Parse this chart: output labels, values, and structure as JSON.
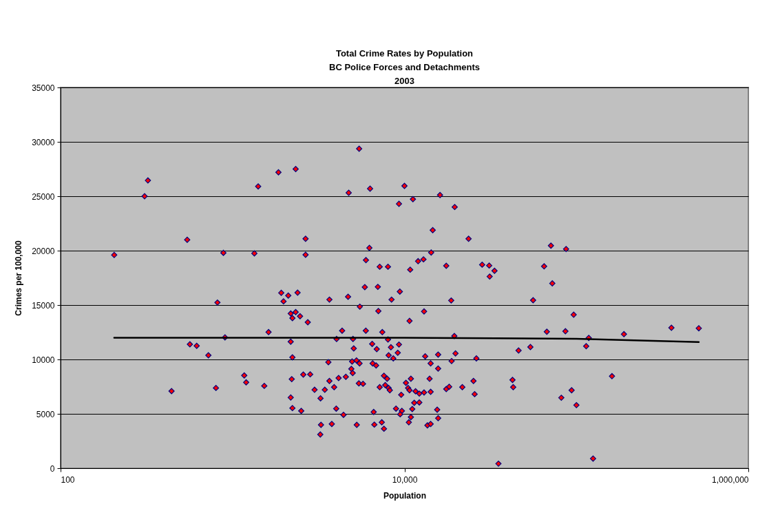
{
  "chart_data": {
    "type": "scatter",
    "title": "Total Crime Rates by Population\nBC Police Forces and Detachments\n2003",
    "xlabel": "Population",
    "ylabel": "Crimes per 100,000",
    "log": "x",
    "xlim": [
      100,
      1000000
    ],
    "xticks": [
      100,
      {
        "value": 10000,
        "label": "10,000"
      },
      {
        "value": 1000000,
        "label": "1,000,000"
      }
    ],
    "ylim": [
      0,
      35000
    ],
    "yticks": [
      0,
      5000,
      10000,
      15000,
      20000,
      25000,
      30000,
      35000
    ],
    "grid": "y",
    "series": [
      {
        "color": "#ff0000",
        "marker": "diamond",
        "x": [
          205,
          308,
          322,
          545,
          885,
          1340,
          1410,
          1850,
          2330,
          817,
          1920,
          2110,
          1980,
          2180,
          2230,
          1620,
          904,
          565,
          619,
          724,
          2180,
          2230,
          1170,
          1200,
          1530,
          442,
          801,
          2210,
          2180,
          2230,
          5450,
          4740,
          6310,
          10000,
          9290,
          11200,
          16100,
          19600,
          14600,
          23600,
          2660,
          2660,
          6250,
          14300,
          5970,
          7180,
          8020,
          10800,
          12000,
          12900,
          17500,
          28300,
          31100,
          33400,
          31300,
          71100,
          87100,
          64900,
          72400,
          56000,
          96400,
          67300,
          86300,
          118000,
          114000,
          189000,
          357000,
          515000,
          54000,
          46100,
          161000,
          93800,
          81700,
          100000,
          125000,
          2390,
          3660,
          4700,
          5880,
          7000,
          9400,
          8410,
          18700,
          5500,
          7050,
          13000,
          10700,
          2330,
          2470,
          2740,
          4340,
          5960,
          7430,
          4030,
          5020,
          8020,
          5070,
          6490,
          6900,
          8340,
          9290,
          9140,
          8090,
          8610,
          19500,
          19800,
          18800,
          26200,
          13200,
          15700,
          14200,
          15700,
          3610,
          4960,
          5260,
          5480,
          6530,
          6840,
          4910,
          5000,
          2580,
          2830,
          3660,
          4140,
          4560,
          3900,
          3000,
          3440,
          3250,
          5430,
          5740,
          7600,
          7930,
          7180,
          7730,
          8090,
          8220,
          10200,
          10900,
          10500,
          10700,
          11600,
          12200,
          13000,
          14200,
          14000,
          9570,
          17500,
          18200,
          21700,
          25200,
          25600,
          42500,
          42900,
          2510,
          4010,
          4420,
          6620,
          8930,
          9660,
          9440,
          11100,
          11400,
          12200,
          10900,
          10600,
          15500,
          15700,
          13600,
          14200,
          3270,
          3780,
          3240,
          5280,
          6680,
          7380,
          7600,
          35200
        ],
        "values": [
          19600,
          25000,
          26450,
          21000,
          19800,
          19750,
          25900,
          27200,
          27500,
          15230,
          16120,
          15870,
          15340,
          14220,
          13800,
          12510,
          12030,
          11390,
          11250,
          10380,
          11630,
          10190,
          8530,
          7890,
          7570,
          7090,
          7380,
          8190,
          6500,
          5530,
          29370,
          25320,
          25700,
          25950,
          24300,
          24730,
          25110,
          24010,
          21880,
          21090,
          21090,
          19620,
          20250,
          19830,
          19130,
          18520,
          18520,
          18250,
          19030,
          19200,
          18610,
          18710,
          18630,
          18150,
          17620,
          20460,
          20150,
          18560,
          16990,
          15440,
          14110,
          12550,
          12590,
          11980,
          11220,
          12320,
          12910,
          12870,
          11140,
          10820,
          8460,
          7170,
          6480,
          5800,
          890,
          16140,
          15500,
          15760,
          16650,
          16670,
          16240,
          15500,
          15420,
          14850,
          14450,
          14410,
          13540,
          14350,
          13970,
          13420,
          12640,
          12640,
          12510,
          11880,
          11880,
          11830,
          11010,
          11430,
          10950,
          11120,
          11370,
          10610,
          10380,
          10100,
          12150,
          10550,
          9850,
          10100,
          10290,
          10440,
          9640,
          9160,
          9750,
          9810,
          9910,
          9640,
          9640,
          9450,
          9130,
          8750,
          8610,
          8630,
          8020,
          8290,
          8400,
          7450,
          7210,
          7210,
          6430,
          7800,
          7760,
          8500,
          8230,
          7450,
          7640,
          7380,
          7170,
          7850,
          8230,
          7380,
          7170,
          7070,
          6860,
          6960,
          7020,
          8230,
          6750,
          7280,
          7490,
          7450,
          8020,
          6810,
          8120,
          7450,
          5270,
          5480,
          4910,
          5170,
          5480,
          5270,
          4960,
          5440,
          6010,
          6050,
          4700,
          4220,
          5380,
          4600,
          3940,
          4070,
          3990,
          4070,
          3100,
          3990,
          4010,
          4220,
          3630,
          420
        ]
      },
      {
        "type": "line",
        "color": "#000000",
        "x": [
          205,
          10000,
          100000,
          515000
        ],
        "values": [
          12000,
          12000,
          11900,
          11600
        ]
      }
    ]
  }
}
